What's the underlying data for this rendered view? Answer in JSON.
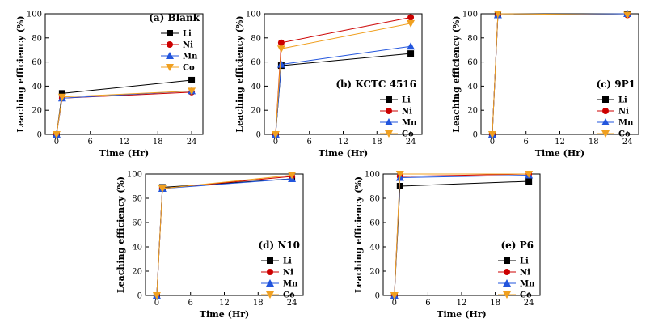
{
  "figure": {
    "series_colors": {
      "Li": "#000000",
      "Ni": "#cc0000",
      "Mn": "#2255dd",
      "Co": "#f0a020"
    },
    "markers": {
      "Li": "square",
      "Ni": "circle",
      "Mn": "triangle-up",
      "Co": "triangle-down"
    }
  },
  "chart_data": [
    {
      "type": "line",
      "title": "(a) Blank",
      "xlabel": "Time (Hr)",
      "ylabel": "Leaching efficiency (%)",
      "xlim": [
        -2,
        26
      ],
      "ylim": [
        0,
        100
      ],
      "xticks": [
        0,
        6,
        12,
        18,
        24
      ],
      "yticks": [
        0,
        20,
        40,
        60,
        80,
        100
      ],
      "x": [
        0,
        1,
        24
      ],
      "legend": "top-right",
      "series": [
        {
          "name": "Li",
          "values": [
            0,
            34,
            45
          ]
        },
        {
          "name": "Ni",
          "values": [
            0,
            30,
            35
          ]
        },
        {
          "name": "Mn",
          "values": [
            0,
            30,
            36
          ]
        },
        {
          "name": "Co",
          "values": [
            0,
            31,
            36
          ]
        }
      ]
    },
    {
      "type": "line",
      "title": "(b) KCTC 4516",
      "xlabel": "Time (Hr)",
      "ylabel": "Leaching efficiency (%)",
      "xlim": [
        -2,
        26
      ],
      "ylim": [
        0,
        100
      ],
      "xticks": [
        0,
        6,
        12,
        18,
        24
      ],
      "yticks": [
        0,
        20,
        40,
        60,
        80,
        100
      ],
      "x": [
        0,
        1,
        24
      ],
      "legend": "bottom-right",
      "series": [
        {
          "name": "Li",
          "values": [
            0,
            57,
            67
          ]
        },
        {
          "name": "Ni",
          "values": [
            0,
            76,
            97
          ]
        },
        {
          "name": "Mn",
          "values": [
            0,
            58,
            73
          ]
        },
        {
          "name": "Co",
          "values": [
            0,
            71,
            92
          ]
        }
      ]
    },
    {
      "type": "line",
      "title": "(c) 9P1",
      "xlabel": "Time (Hr)",
      "ylabel": "Leaching efficiency (%)",
      "xlim": [
        -2,
        26
      ],
      "ylim": [
        0,
        100
      ],
      "xticks": [
        0,
        6,
        12,
        18,
        24
      ],
      "yticks": [
        0,
        20,
        40,
        60,
        80,
        100
      ],
      "x": [
        0,
        1,
        24
      ],
      "legend": "bottom-right",
      "series": [
        {
          "name": "Li",
          "values": [
            0,
            99,
            100
          ]
        },
        {
          "name": "Ni",
          "values": [
            0,
            99,
            99
          ]
        },
        {
          "name": "Mn",
          "values": [
            0,
            99,
            100
          ]
        },
        {
          "name": "Co",
          "values": [
            0,
            100,
            99
          ]
        }
      ]
    },
    {
      "type": "line",
      "title": "(d) N10",
      "xlabel": "Time (Hr)",
      "ylabel": "Leaching efficiency (%)",
      "xlim": [
        -2,
        26
      ],
      "ylim": [
        0,
        100
      ],
      "xticks": [
        0,
        6,
        12,
        18,
        24
      ],
      "yticks": [
        0,
        20,
        40,
        60,
        80,
        100
      ],
      "x": [
        0,
        1,
        24
      ],
      "legend": "bottom-right",
      "series": [
        {
          "name": "Li",
          "values": [
            0,
            89,
            96
          ]
        },
        {
          "name": "Ni",
          "values": [
            0,
            88,
            98
          ]
        },
        {
          "name": "Mn",
          "values": [
            0,
            88,
            96
          ]
        },
        {
          "name": "Co",
          "values": [
            0,
            88,
            99
          ]
        }
      ]
    },
    {
      "type": "line",
      "title": "(e) P6",
      "xlabel": "Time (Hr)",
      "ylabel": "Leaching efficiency (%)",
      "xlim": [
        -2,
        26
      ],
      "ylim": [
        0,
        100
      ],
      "xticks": [
        0,
        6,
        12,
        18,
        24
      ],
      "yticks": [
        0,
        20,
        40,
        60,
        80,
        100
      ],
      "x": [
        0,
        1,
        24
      ],
      "legend": "bottom-right",
      "series": [
        {
          "name": "Li",
          "values": [
            0,
            90,
            94
          ]
        },
        {
          "name": "Ni",
          "values": [
            0,
            98,
            100
          ]
        },
        {
          "name": "Mn",
          "values": [
            0,
            97,
            99
          ]
        },
        {
          "name": "Co",
          "values": [
            0,
            100,
            100
          ]
        }
      ]
    }
  ]
}
